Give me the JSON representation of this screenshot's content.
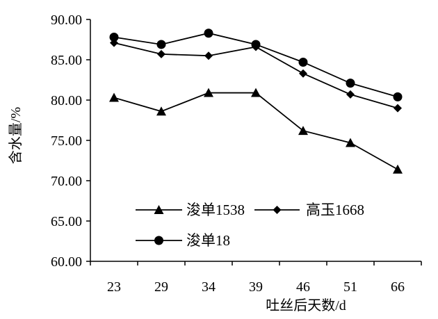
{
  "chart_data": {
    "type": "line",
    "title": "",
    "xlabel": "吐丝后天数/d",
    "ylabel": "含水量/%",
    "categories": [
      "23",
      "29",
      "34",
      "39",
      "46",
      "51",
      "66"
    ],
    "ylim": [
      60,
      90
    ],
    "yticks": [
      "60.00",
      "65.00",
      "70.00",
      "75.00",
      "80.00",
      "85.00",
      "90.00"
    ],
    "grid": false,
    "legend_position": "bottom-center, inside plot",
    "series": [
      {
        "name": "浚单1538",
        "marker": "triangle",
        "color": "#000000",
        "values": [
          80.3,
          78.6,
          80.9,
          80.9,
          76.2,
          74.7,
          71.4
        ]
      },
      {
        "name": "高玉1668",
        "marker": "diamond",
        "color": "#000000",
        "values": [
          87.1,
          85.7,
          85.5,
          86.6,
          83.3,
          80.7,
          79.0
        ]
      },
      {
        "name": "浚单18",
        "marker": "circle",
        "color": "#000000",
        "values": [
          87.8,
          86.9,
          88.3,
          86.9,
          84.7,
          82.1,
          80.4
        ]
      }
    ]
  }
}
